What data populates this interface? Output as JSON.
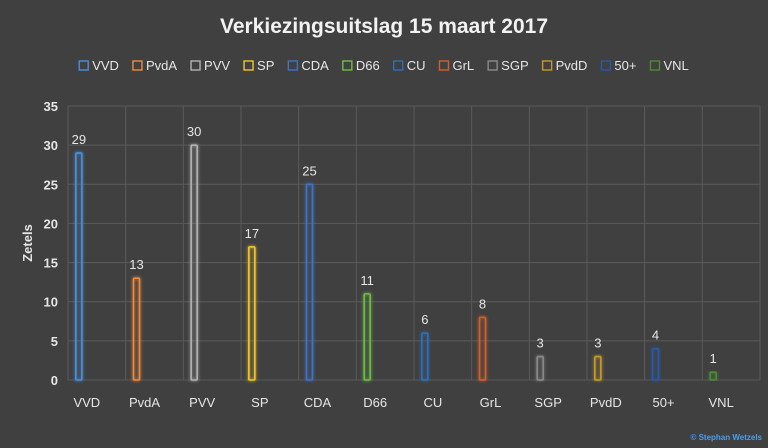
{
  "chart_data": {
    "type": "bar",
    "title": "Verkiezingsuitslag 15 maart 2017",
    "ylabel": "Zetels",
    "xlabel": "",
    "ylim": [
      0,
      35
    ],
    "yticks": [
      0,
      5,
      10,
      15,
      20,
      25,
      30,
      35
    ],
    "grid": true,
    "legend_position": "top",
    "categories": [
      "VVD",
      "PvdA",
      "PVV",
      "SP",
      "CDA",
      "D66",
      "CU",
      "GrL",
      "SGP",
      "PvdD",
      "50+",
      "VNL"
    ],
    "values": [
      29,
      13,
      30,
      17,
      25,
      11,
      6,
      8,
      3,
      3,
      4,
      1
    ],
    "colors": [
      "#4a8fdc",
      "#ef8a3c",
      "#b3b3b3",
      "#f2c62a",
      "#3f72c8",
      "#6dbd45",
      "#2f6fb8",
      "#d2602e",
      "#8a8a8a",
      "#c49a2a",
      "#2c58a8",
      "#4e8a34"
    ]
  },
  "credit": "© Stephan Wetzels"
}
